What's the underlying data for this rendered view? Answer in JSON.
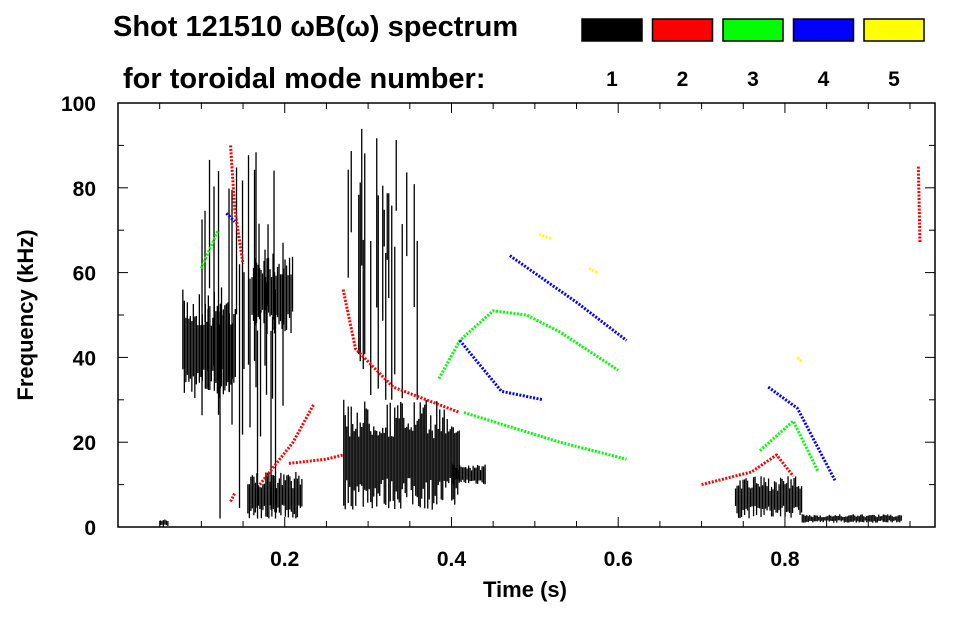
{
  "chart_data": {
    "type": "heatmap",
    "title": "Shot 121510 ωB(ω) spectrum",
    "subtitle": "for toroidal mode number:",
    "xlabel": "Time (s)",
    "ylabel": "Frequency (kHz)",
    "xlim": [
      0.0,
      0.98
    ],
    "ylim": [
      0,
      100
    ],
    "x_ticks": [
      0.2,
      0.4,
      0.6,
      0.8
    ],
    "x_tick_labels": [
      "0.2",
      "0.4",
      "0.6",
      "0.8"
    ],
    "x_minor_step": 0.05,
    "y_ticks": [
      0,
      20,
      40,
      60,
      80,
      100
    ],
    "y_tick_labels": [
      "0",
      "20",
      "40",
      "60",
      "80",
      "100"
    ],
    "y_minor_step": 10,
    "legend_placement": "top-right",
    "legend": [
      {
        "label": "1",
        "color": "#000000"
      },
      {
        "label": "2",
        "color": "#ff0000"
      },
      {
        "label": "3",
        "color": "#00ff00"
      },
      {
        "label": "4",
        "color": "#0000ff"
      },
      {
        "label": "5",
        "color": "#ffff00"
      }
    ],
    "series": [
      {
        "name": "1",
        "color": "#000000",
        "kind": "patches",
        "patches": [
          [
            0.077,
            0.14,
            30,
            56
          ],
          [
            0.1,
            0.2,
            2,
            90
          ],
          [
            0.155,
            0.22,
            2,
            13
          ],
          [
            0.16,
            0.21,
            45,
            66
          ],
          [
            0.27,
            0.41,
            4,
            30
          ],
          [
            0.4,
            0.44,
            10,
            15
          ],
          [
            0.27,
            0.36,
            30,
            98
          ],
          [
            0.74,
            0.82,
            2,
            12
          ],
          [
            0.82,
            0.94,
            1,
            3
          ],
          [
            0.05,
            0.06,
            0,
            2
          ]
        ]
      },
      {
        "name": "2",
        "color": "#ff0000",
        "kind": "ridges",
        "ridges": [
          [
            [
              0.27,
              56
            ],
            [
              0.285,
              42
            ],
            [
              0.33,
              33
            ],
            [
              0.37,
              30
            ],
            [
              0.41,
              27
            ]
          ],
          [
            [
              0.17,
              10
            ],
            [
              0.21,
              20
            ],
            [
              0.235,
              29
            ]
          ],
          [
            [
              0.205,
              15
            ],
            [
              0.25,
              16
            ],
            [
              0.27,
              17
            ]
          ],
          [
            [
              0.7,
              10
            ],
            [
              0.76,
              13
            ],
            [
              0.79,
              17
            ],
            [
              0.81,
              12
            ]
          ],
          [
            [
              0.135,
              90
            ],
            [
              0.14,
              75
            ],
            [
              0.15,
              62
            ]
          ],
          [
            [
              0.96,
              85
            ],
            [
              0.962,
              67
            ]
          ],
          [
            [
              0.135,
              6
            ],
            [
              0.14,
              8
            ]
          ]
        ]
      },
      {
        "name": "3",
        "color": "#00ff00",
        "kind": "ridges",
        "ridges": [
          [
            [
              0.385,
              35
            ],
            [
              0.41,
              44
            ],
            [
              0.45,
              51
            ],
            [
              0.49,
              50
            ],
            [
              0.53,
              46
            ],
            [
              0.6,
              37
            ]
          ],
          [
            [
              0.415,
              27
            ],
            [
              0.53,
              20
            ],
            [
              0.61,
              16
            ]
          ],
          [
            [
              0.77,
              18
            ],
            [
              0.81,
              25
            ],
            [
              0.84,
              13
            ]
          ],
          [
            [
              0.1,
              61
            ],
            [
              0.12,
              70
            ]
          ]
        ]
      },
      {
        "name": "4",
        "color": "#0000ff",
        "kind": "ridges",
        "ridges": [
          [
            [
              0.47,
              64
            ],
            [
              0.55,
              53
            ],
            [
              0.61,
              44
            ]
          ],
          [
            [
              0.41,
              44
            ],
            [
              0.46,
              32
            ],
            [
              0.51,
              30
            ]
          ],
          [
            [
              0.78,
              33
            ],
            [
              0.815,
              28
            ],
            [
              0.86,
              11
            ]
          ],
          [
            [
              0.13,
              74
            ],
            [
              0.14,
              72
            ]
          ]
        ]
      },
      {
        "name": "5",
        "color": "#ffff00",
        "kind": "ridges",
        "ridges": [
          [
            [
              0.505,
              69
            ],
            [
              0.52,
              68
            ]
          ],
          [
            [
              0.565,
              61
            ],
            [
              0.575,
              60
            ]
          ],
          [
            [
              0.815,
              40
            ],
            [
              0.82,
              39
            ]
          ]
        ]
      }
    ]
  }
}
